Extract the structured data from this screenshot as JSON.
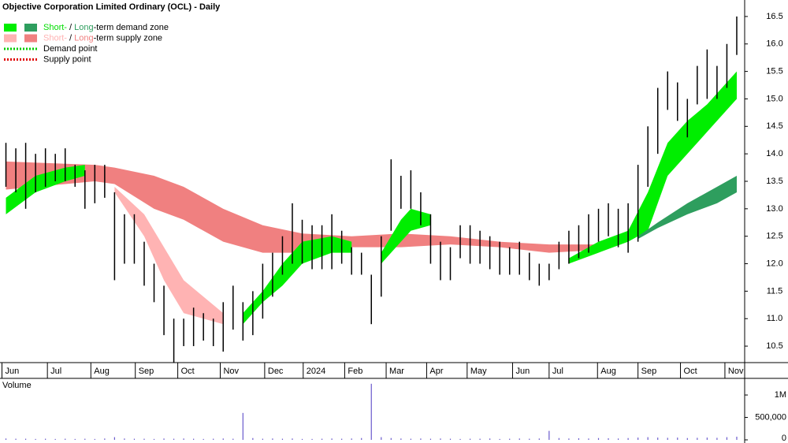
{
  "chart_data": [
    {
      "type": "ohlc",
      "title": "Objective Corporation Limited Ordinary (OCL) - Daily",
      "color": "#000000",
      "x": [
        0,
        1,
        2,
        3,
        4,
        5,
        6,
        7,
        8,
        9,
        10,
        11,
        12,
        13,
        14,
        15,
        16,
        17,
        18,
        19,
        20,
        21,
        22,
        23,
        24,
        25,
        26,
        27,
        28,
        29,
        30,
        31,
        32,
        33,
        34,
        35,
        36,
        37,
        38,
        39,
        40,
        41,
        42,
        43,
        44,
        45,
        46,
        47,
        48,
        49,
        50,
        51,
        52,
        53,
        54,
        55,
        56,
        57,
        58,
        59,
        60,
        61,
        62,
        63,
        64,
        65,
        66,
        67,
        68,
        69,
        70,
        71,
        72,
        73,
        74
      ],
      "high": [
        14.2,
        14.1,
        14.2,
        14.0,
        14.1,
        14.0,
        14.1,
        13.8,
        13.7,
        13.8,
        13.8,
        13.3,
        12.9,
        12.9,
        12.4,
        12.0,
        11.6,
        11.0,
        11.0,
        11.2,
        11.1,
        11.0,
        11.3,
        11.6,
        11.3,
        11.5,
        12.0,
        12.2,
        12.5,
        13.1,
        12.8,
        12.7,
        12.7,
        12.9,
        12.6,
        12.3,
        12.2,
        11.8,
        12.5,
        13.9,
        13.6,
        13.7,
        13.3,
        12.9,
        12.4,
        12.3,
        12.7,
        12.7,
        12.6,
        12.5,
        12.4,
        12.3,
        12.4,
        12.2,
        12.0,
        12.0,
        12.4,
        12.6,
        12.7,
        12.9,
        13.0,
        13.1,
        13.0,
        13.1,
        13.8,
        14.5,
        15.2,
        15.5,
        15.3,
        15.0,
        15.6,
        15.9,
        15.6,
        16.0,
        16.5
      ],
      "low": [
        13.4,
        13.3,
        13.0,
        13.3,
        13.4,
        13.5,
        13.5,
        13.4,
        13.0,
        13.1,
        13.2,
        11.7,
        12.0,
        12.0,
        11.6,
        11.3,
        10.7,
        10.2,
        10.5,
        10.5,
        10.6,
        10.5,
        10.4,
        10.8,
        10.6,
        10.7,
        11.0,
        11.4,
        11.8,
        12.0,
        12.0,
        11.9,
        11.9,
        11.9,
        12.0,
        11.8,
        11.8,
        10.9,
        11.4,
        12.6,
        13.0,
        13.0,
        12.7,
        12.0,
        11.7,
        11.7,
        12.1,
        12.0,
        12.0,
        11.9,
        11.8,
        11.8,
        11.8,
        11.7,
        11.6,
        11.7,
        11.9,
        12.0,
        12.1,
        12.2,
        12.4,
        12.5,
        12.3,
        12.2,
        12.4,
        13.4,
        14.0,
        14.8,
        14.6,
        14.3,
        14.9,
        15.0,
        15.0,
        15.2,
        15.8
      ],
      "xlim": [
        -0.6,
        74.8
      ],
      "xticks": [
        {
          "value": -0.4,
          "label": "Jun"
        },
        {
          "value": 4.2,
          "label": "Jul"
        },
        {
          "value": 8.6,
          "label": "Aug"
        },
        {
          "value": 13.1,
          "label": "Sep"
        },
        {
          "value": 17.4,
          "label": "Oct"
        },
        {
          "value": 21.7,
          "label": "Nov"
        },
        {
          "value": 26.2,
          "label": "Dec"
        },
        {
          "value": 30.1,
          "label": "2024"
        },
        {
          "value": 34.3,
          "label": "Feb"
        },
        {
          "value": 38.5,
          "label": "Mar"
        },
        {
          "value": 42.6,
          "label": "Apr"
        },
        {
          "value": 46.7,
          "label": "May"
        },
        {
          "value": 51.3,
          "label": "Jun"
        },
        {
          "value": 55,
          "label": "Jul"
        },
        {
          "value": 59.9,
          "label": "Aug"
        },
        {
          "value": 64,
          "label": "Sep"
        },
        {
          "value": 68.3,
          "label": "Oct"
        },
        {
          "value": 72.8,
          "label": "Nov"
        }
      ],
      "ylim": [
        10.2,
        16.8
      ],
      "yticks": [
        10.5,
        {
          "value": 11,
          "label": "11.0"
        },
        11.5,
        {
          "value": 12,
          "label": "12.0"
        },
        12.5,
        {
          "value": 13,
          "label": "13.0"
        },
        13.5,
        {
          "value": 14,
          "label": "14.0"
        },
        14.5,
        {
          "value": 15,
          "label": "15.0"
        },
        15.5,
        {
          "value": 16,
          "label": "16.0"
        },
        16.5
      ],
      "zones": [
        {
          "color": "#f08080",
          "x": [
            0,
            9,
            11,
            15,
            18,
            22,
            26,
            30,
            35,
            40,
            45,
            50,
            55,
            60
          ],
          "upper": [
            13.86,
            13.8,
            13.75,
            13.6,
            13.4,
            13.0,
            12.7,
            12.55,
            12.5,
            12.55,
            12.5,
            12.4,
            12.35,
            12.35
          ],
          "lower": [
            13.35,
            13.5,
            13.45,
            13.0,
            12.8,
            12.4,
            12.2,
            12.2,
            12.3,
            12.3,
            12.35,
            12.3,
            12.2,
            12.25
          ]
        },
        {
          "color": "#ffb3b3",
          "x": [
            11,
            14,
            16,
            18,
            20,
            22
          ],
          "upper": [
            13.4,
            12.9,
            12.3,
            11.7,
            11.4,
            11.1
          ],
          "lower": [
            13.3,
            12.5,
            11.7,
            11.1,
            11.0,
            10.9
          ]
        },
        {
          "color": "#00ee00",
          "x": [
            0,
            3,
            6,
            8
          ],
          "upper": [
            13.2,
            13.6,
            13.75,
            13.8
          ],
          "lower": [
            12.9,
            13.3,
            13.5,
            13.6
          ]
        },
        {
          "color": "#00ee00",
          "x": [
            24,
            26,
            28,
            30,
            33,
            35
          ],
          "upper": [
            11.1,
            11.5,
            12.0,
            12.4,
            12.5,
            12.4
          ],
          "lower": [
            10.9,
            11.3,
            11.6,
            12.0,
            12.2,
            12.2
          ]
        },
        {
          "color": "#00ee00",
          "x": [
            38,
            40,
            41,
            43
          ],
          "upper": [
            12.2,
            12.8,
            13.0,
            12.9
          ],
          "lower": [
            12.0,
            12.4,
            12.6,
            12.7
          ]
        },
        {
          "color": "#00ee00",
          "x": [
            57,
            60,
            63,
            65,
            67,
            69,
            71,
            73,
            74
          ],
          "upper": [
            12.1,
            12.4,
            12.6,
            13.3,
            14.2,
            14.6,
            14.9,
            15.3,
            15.5
          ],
          "lower": [
            12.0,
            12.2,
            12.4,
            12.6,
            13.6,
            14.0,
            14.4,
            14.8,
            15.0
          ]
        },
        {
          "color": "#2e9e5e",
          "x": [
            64,
            66,
            69,
            72,
            74
          ],
          "upper": [
            12.5,
            12.75,
            13.1,
            13.4,
            13.6
          ],
          "lower": [
            12.45,
            12.65,
            12.9,
            13.1,
            13.3
          ]
        }
      ],
      "legend": [
        {
          "style": "box",
          "swatches": [
            "#00ee00",
            "#2e9e5e"
          ],
          "parts": [
            {
              "text": "Short-",
              "color": "#00dd00"
            },
            {
              "text": " / "
            },
            {
              "text": "Long",
              "color": "#2e9e5e"
            },
            {
              "text": "-term demand zone"
            }
          ]
        },
        {
          "style": "box",
          "swatches": [
            "#ffb3b3",
            "#f08080"
          ],
          "parts": [
            {
              "text": "Short-",
              "color": "#ffb3b3"
            },
            {
              "text": " / "
            },
            {
              "text": "Long",
              "color": "#f08080"
            },
            {
              "text": "-term supply zone"
            }
          ]
        },
        {
          "style": "dotted",
          "swatches": [
            "#00cc00"
          ],
          "parts": [
            {
              "text": "Demand point"
            }
          ]
        },
        {
          "style": "dotted",
          "swatches": [
            "#e00000"
          ],
          "parts": [
            {
              "text": "Supply point"
            }
          ]
        }
      ]
    },
    {
      "type": "bar",
      "title": "Volume",
      "title_color": "#5b2c8f",
      "color": "#6a5acd",
      "x": [
        0,
        1,
        2,
        3,
        4,
        5,
        6,
        7,
        8,
        9,
        10,
        11,
        12,
        13,
        14,
        15,
        16,
        17,
        18,
        19,
        20,
        21,
        22,
        23,
        24,
        25,
        26,
        27,
        28,
        29,
        30,
        31,
        32,
        33,
        34,
        35,
        36,
        37,
        38,
        39,
        40,
        41,
        42,
        43,
        44,
        45,
        46,
        47,
        48,
        49,
        50,
        51,
        52,
        53,
        54,
        55,
        56,
        57,
        58,
        59,
        60,
        61,
        62,
        63,
        64,
        65,
        66,
        67,
        68,
        69,
        70,
        71,
        72,
        73,
        74
      ],
      "values": [
        30000,
        25000,
        25000,
        20000,
        25000,
        20000,
        25000,
        20000,
        25000,
        20000,
        30000,
        60000,
        30000,
        25000,
        25000,
        20000,
        30000,
        25000,
        30000,
        25000,
        20000,
        25000,
        30000,
        25000,
        600000,
        40000,
        25000,
        30000,
        25000,
        30000,
        20000,
        20000,
        25000,
        30000,
        25000,
        30000,
        40000,
        1250000,
        60000,
        40000,
        30000,
        25000,
        30000,
        25000,
        30000,
        25000,
        20000,
        25000,
        25000,
        30000,
        20000,
        25000,
        30000,
        25000,
        30000,
        200000,
        40000,
        30000,
        35000,
        30000,
        40000,
        35000,
        30000,
        40000,
        50000,
        60000,
        50000,
        45000,
        50000,
        40000,
        45000,
        50000,
        45000,
        60000,
        70000
      ],
      "xlim": [
        -0.6,
        74.8
      ],
      "ylim": [
        0,
        1300000
      ],
      "yticks": [
        0,
        {
          "value": 500000,
          "label": "500,000"
        },
        {
          "value": 1000000,
          "label": "1M"
        }
      ]
    }
  ]
}
